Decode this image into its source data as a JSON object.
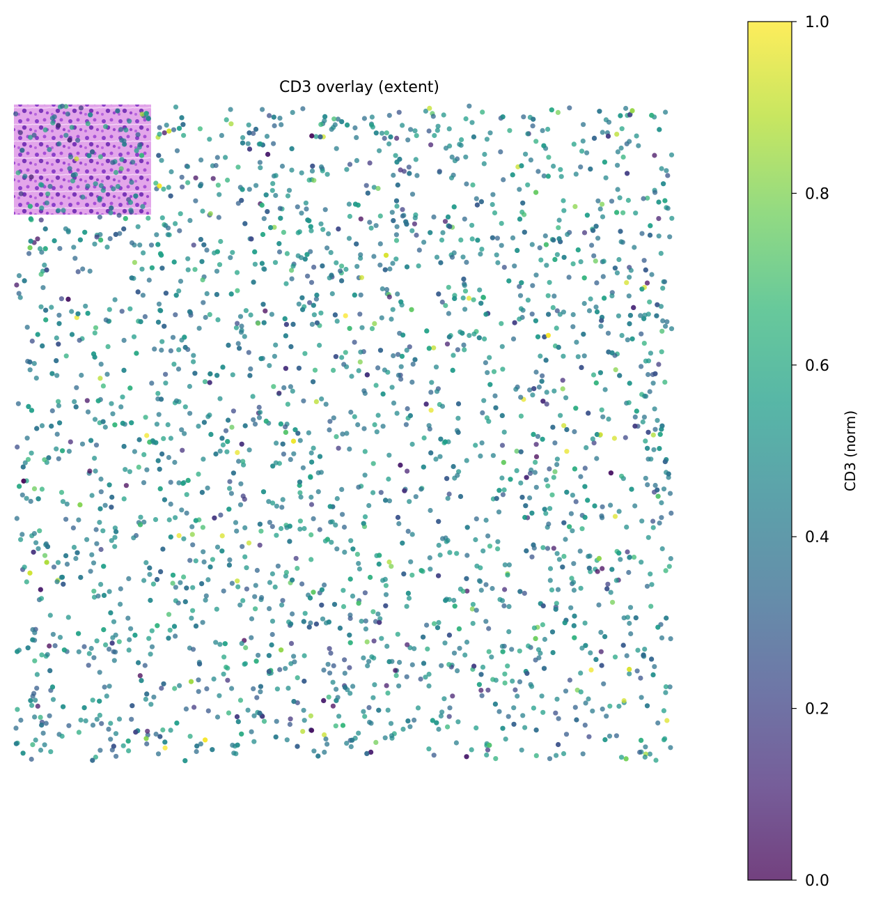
{
  "chart_data": {
    "type": "scatter",
    "title": "CD3 overlay (extent)",
    "axes_visible": false,
    "background_image": "H&E tissue tile (pink/purple)",
    "point_count_estimate": 3000,
    "color_variable": "CD3 (norm)",
    "colormap": "viridis",
    "point_alpha": 0.75,
    "value_distribution": "most points 0.3-0.6, few near 0 or 1",
    "colorbar": {
      "label": "CD3 (norm)",
      "range": [
        0.0,
        1.0
      ],
      "ticks": [
        "0.0",
        "0.2",
        "0.4",
        "0.6",
        "0.8",
        "1.0"
      ],
      "colors": [
        "#440154",
        "#482878",
        "#3e4989",
        "#31688e",
        "#26828e",
        "#1f9e89",
        "#35b779",
        "#6ece58",
        "#b5de2b",
        "#fde725"
      ]
    }
  }
}
